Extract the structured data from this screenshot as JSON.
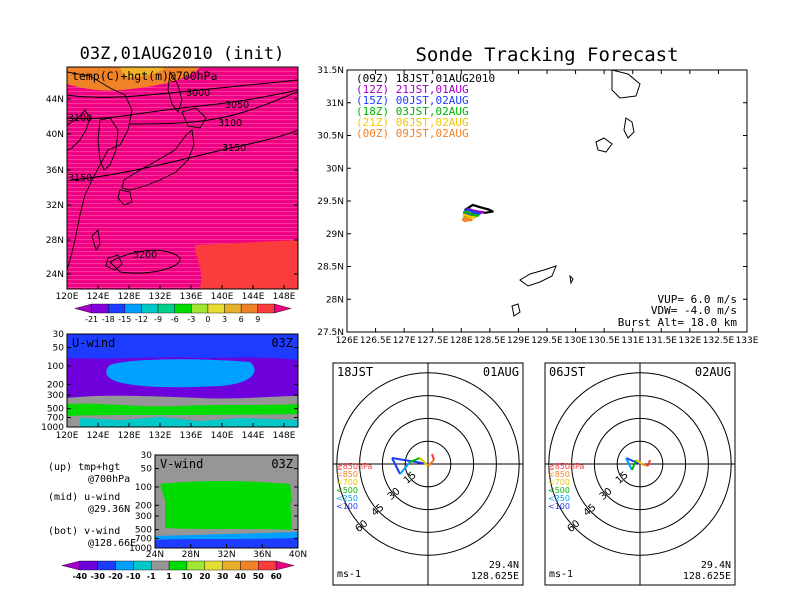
{
  "left": {
    "title": "03Z,01AUG2010 (init)",
    "map_label": "temp(C)+hgt(m)@700hPa",
    "lat_ticks": [
      "44N",
      "40N",
      "36N",
      "32N",
      "28N",
      "24N"
    ],
    "lon_ticks": [
      "120E",
      "124E",
      "128E",
      "132E",
      "136E",
      "140E",
      "144E",
      "148E"
    ],
    "contours": [
      "3000",
      "3050",
      "3100",
      "3100",
      "3150",
      "3150",
      "3200"
    ],
    "temp_colorbar": [
      "-21",
      "-18",
      "-15",
      "-12",
      "-9",
      "-6",
      "-3",
      "0",
      "3",
      "6",
      "9"
    ],
    "temp_colors": [
      "#a000c8",
      "#8200dc",
      "#1e3cff",
      "#00a0ff",
      "#00c8c8",
      "#00d28c",
      "#00dc00",
      "#a0e632",
      "#e6dc32",
      "#e6af2d",
      "#f08228",
      "#fa3c3c",
      "#f00082"
    ],
    "uwind_label": "U-wind",
    "uwind_time": "03Z",
    "p_ticks": [
      "30",
      "50",
      "100",
      "200",
      "300",
      "500",
      "700",
      "1000"
    ],
    "vwind_label": "V-wind",
    "vwind_time": "03Z",
    "vlat_ticks": [
      "24N",
      "28N",
      "32N",
      "36N",
      "40N"
    ],
    "wind_colorbar": [
      "-40",
      "-30",
      "-20",
      "-10",
      "-1",
      "1",
      "10",
      "20",
      "30",
      "40",
      "50",
      "60"
    ],
    "wind_colors": [
      "#a000c8",
      "#6e00dc",
      "#1e3cff",
      "#00a0ff",
      "#00c8c8",
      "#969696",
      "#00dc00",
      "#a0e632",
      "#e6dc32",
      "#e6af2d",
      "#f08228",
      "#fa3c3c",
      "#f00082"
    ],
    "legend_lines": [
      [
        "(up)  tmp+hgt",
        "@700hPa"
      ],
      [
        "(mid)  u-wind",
        "@29.36N"
      ],
      [
        "(bot)  v-wind",
        "@128.66E"
      ]
    ]
  },
  "tracker": {
    "title": "Sonde Tracking Forecast",
    "lat_ticks": [
      "31.5N",
      "31N",
      "30.5N",
      "30N",
      "29.5N",
      "29N",
      "28.5N",
      "28N",
      "27.5N"
    ],
    "lon_ticks": [
      "126E",
      "126.5E",
      "127E",
      "127.5E",
      "128E",
      "128.5E",
      "129E",
      "129.5E",
      "130E",
      "130.5E",
      "131E",
      "131.5E",
      "132E",
      "132.5E",
      "133E"
    ],
    "legend": [
      {
        "label": "(09Z)  18JST,01AUG2010",
        "color": "#000000"
      },
      {
        "label": "(12Z)  21JST,01AUG",
        "color": "#a000c8"
      },
      {
        "label": "(15Z)  00JST,02AUG",
        "color": "#1e3cff"
      },
      {
        "label": "(18Z)  03JST,02AUG",
        "color": "#00b400"
      },
      {
        "label": "(21Z)  06JST,02AUG",
        "color": "#f0c800"
      },
      {
        "label": "(00Z)  09JST,02AUG",
        "color": "#f08228"
      }
    ],
    "params": [
      "VUP=  6.0  m/s",
      "VDW= -4.0  m/s",
      "Burst Alt=  18.0  km"
    ]
  },
  "hodo_left": {
    "time": "18JST",
    "date": "01AUG",
    "rings": [
      "15",
      "30",
      "45",
      "60"
    ],
    "levels": [
      {
        "label": "≧850hPa",
        "color": "#fa3c3c"
      },
      {
        "label": "<850",
        "color": "#f08228"
      },
      {
        "label": "<700",
        "color": "#e6c800"
      },
      {
        "label": "<500",
        "color": "#00b400"
      },
      {
        "label": "<250",
        "color": "#00a0ff"
      },
      {
        "label": "<100",
        "color": "#1e3cff"
      }
    ],
    "unit": "ms-1",
    "lat": "29.4N",
    "lon": "128.625E"
  },
  "hodo_right": {
    "time": "06JST",
    "date": "02AUG",
    "rings": [
      "15",
      "30",
      "45",
      "60"
    ],
    "levels": [
      {
        "label": "≧850hPa",
        "color": "#fa3c3c"
      },
      {
        "label": "<850",
        "color": "#f08228"
      },
      {
        "label": "<700",
        "color": "#e6c800"
      },
      {
        "label": "<500",
        "color": "#00b400"
      },
      {
        "label": "<250",
        "color": "#00a0ff"
      },
      {
        "label": "<100",
        "color": "#1e3cff"
      }
    ],
    "unit": "ms-1",
    "lat": "29.4N",
    "lon": "128.625E"
  },
  "chart_data": [
    {
      "type": "heatmap",
      "title": "03Z,01AUG2010 (init)",
      "annotation": "temp(C)+hgt(m)@700hPa",
      "xlim": [
        120,
        150
      ],
      "ylim": [
        22,
        47
      ],
      "colorbar": [
        -21,
        -18,
        -15,
        -12,
        -9,
        -6,
        -3,
        0,
        3,
        6,
        9
      ],
      "height_contours": [
        3000,
        3050,
        3100,
        3150,
        3200
      ]
    },
    {
      "type": "heatmap",
      "title": "U-wind",
      "time": "03Z",
      "xlim": [
        120,
        150
      ],
      "pressure_levels": [
        30,
        50,
        100,
        200,
        300,
        500,
        700,
        1000
      ]
    },
    {
      "type": "heatmap",
      "title": "V-wind",
      "time": "03Z",
      "xlim": [
        24,
        40
      ],
      "pressure_levels": [
        30,
        50,
        100,
        200,
        300,
        500,
        700,
        1000
      ],
      "colorbar": [
        -40,
        -30,
        -20,
        -10,
        -1,
        1,
        10,
        20,
        30,
        40,
        50,
        60
      ]
    },
    {
      "type": "line",
      "title": "Sonde Tracking Forecast",
      "xlim": [
        126,
        133
      ],
      "ylim": [
        27.5,
        31.5
      ],
      "series": [
        {
          "name": "(09Z)  18JST,01AUG2010",
          "x": [
            128.06,
            128.2,
            128.35,
            128.48,
            128.55,
            128.42,
            128.28,
            128.12
          ],
          "y": [
            29.36,
            29.44,
            29.4,
            29.37,
            29.34,
            29.32,
            29.34,
            29.36
          ]
        },
        {
          "name": "(12Z)  21JST,01AUG",
          "x": [
            128.05,
            128.12,
            128.28,
            128.38,
            128.3,
            128.14
          ],
          "y": [
            29.33,
            29.38,
            29.34,
            29.33,
            29.3,
            29.31
          ]
        },
        {
          "name": "(15Z)  00JST,02AUG",
          "x": [
            128.04,
            128.1,
            128.22,
            128.32,
            128.2,
            128.07
          ],
          "y": [
            29.32,
            29.37,
            29.33,
            29.31,
            29.29,
            29.3
          ]
        },
        {
          "name": "(18Z)  03JST,02AUG",
          "x": [
            128.04,
            128.08,
            128.18,
            128.3,
            128.2,
            128.05
          ],
          "y": [
            29.3,
            29.34,
            29.3,
            29.28,
            29.26,
            29.27
          ]
        },
        {
          "name": "(21Z)  06JST,02AUG",
          "x": [
            128.03,
            128.06,
            128.16,
            128.24,
            128.14,
            128.04
          ],
          "y": [
            29.26,
            29.29,
            29.26,
            29.25,
            29.24,
            29.24
          ]
        },
        {
          "name": "(00Z)  09JST,02AUG",
          "x": [
            128.02,
            128.05,
            128.12,
            128.18,
            128.08,
            128.04
          ],
          "y": [
            29.2,
            29.24,
            29.22,
            29.21,
            29.2,
            29.19
          ]
        }
      ]
    }
  ]
}
